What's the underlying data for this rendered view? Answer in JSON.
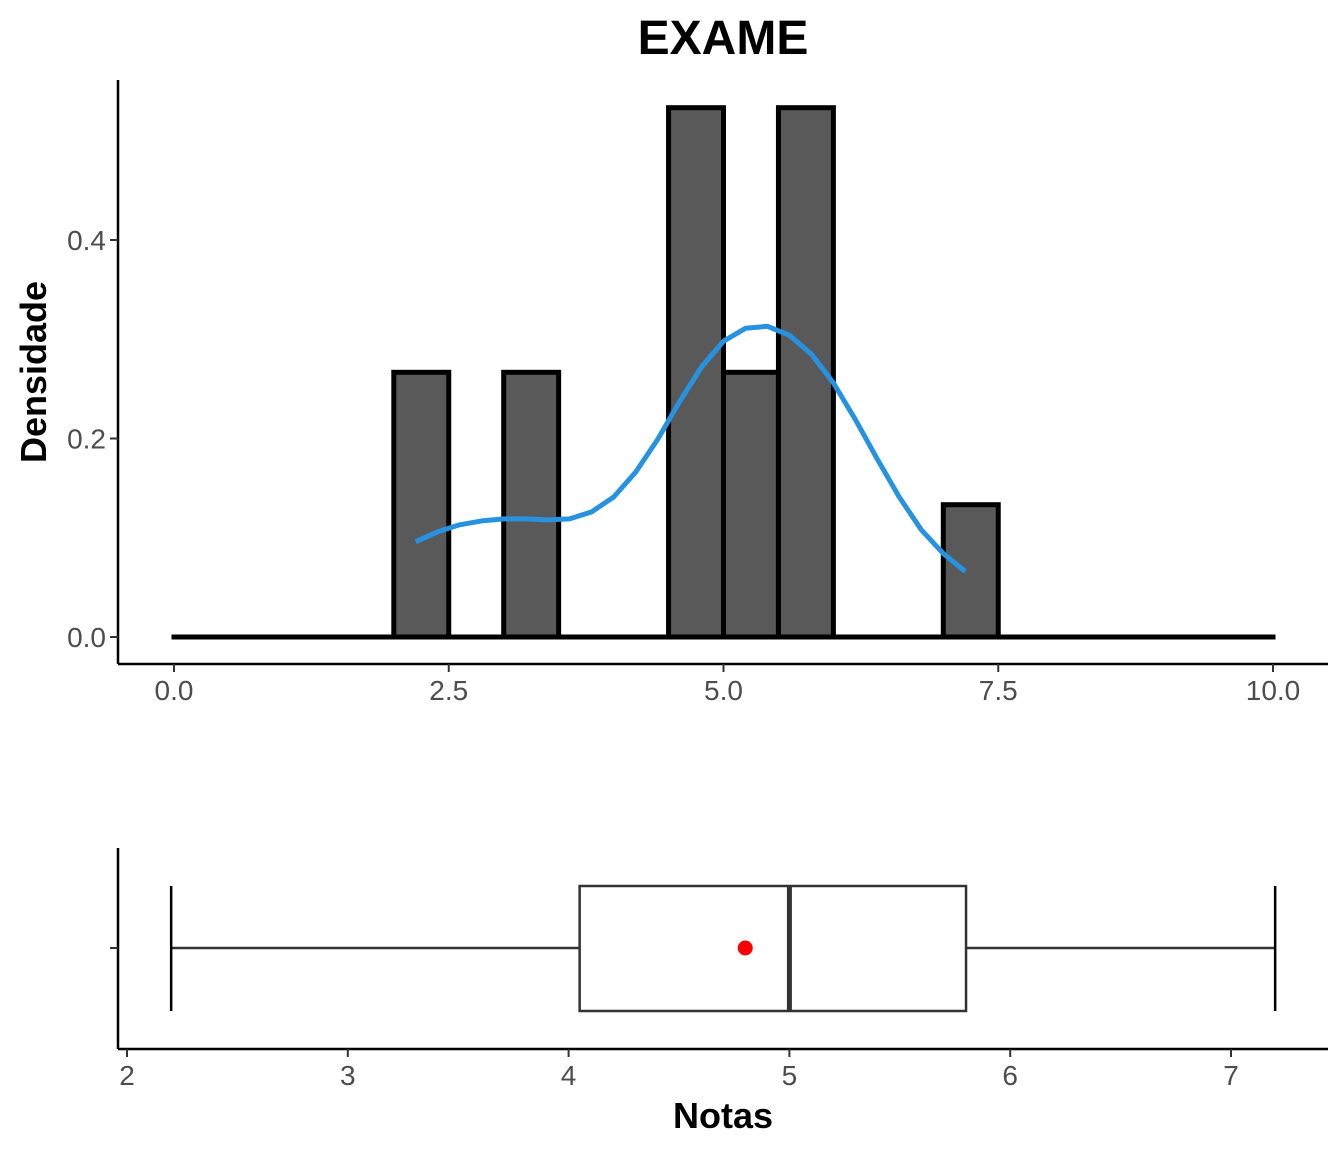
{
  "chart_data": [
    {
      "type": "bar",
      "subtype": "histogram",
      "title": "EXAME",
      "xlabel": "",
      "ylabel": "Densidade",
      "xlim": [
        0.0,
        10.0
      ],
      "ylim": [
        0.0,
        0.55
      ],
      "x_ticks": [
        "0.0",
        "2.5",
        "5.0",
        "7.5",
        "10.0"
      ],
      "y_ticks": [
        "0.0",
        "0.2",
        "0.4"
      ],
      "bin_width": 0.5,
      "bins": [
        {
          "x0": 0.0,
          "x1": 0.5,
          "density": 0.0
        },
        {
          "x0": 0.5,
          "x1": 1.0,
          "density": 0.0
        },
        {
          "x0": 1.0,
          "x1": 1.5,
          "density": 0.0
        },
        {
          "x0": 1.5,
          "x1": 2.0,
          "density": 0.0
        },
        {
          "x0": 2.0,
          "x1": 2.5,
          "density": 0.2667
        },
        {
          "x0": 2.5,
          "x1": 3.0,
          "density": 0.0
        },
        {
          "x0": 3.0,
          "x1": 3.5,
          "density": 0.2667
        },
        {
          "x0": 3.5,
          "x1": 4.0,
          "density": 0.0
        },
        {
          "x0": 4.0,
          "x1": 4.5,
          "density": 0.0
        },
        {
          "x0": 4.5,
          "x1": 5.0,
          "density": 0.5333
        },
        {
          "x0": 5.0,
          "x1": 5.5,
          "density": 0.2667
        },
        {
          "x0": 5.5,
          "x1": 6.0,
          "density": 0.5333
        },
        {
          "x0": 6.0,
          "x1": 6.5,
          "density": 0.0
        },
        {
          "x0": 6.5,
          "x1": 7.0,
          "density": 0.0
        },
        {
          "x0": 7.0,
          "x1": 7.5,
          "density": 0.1333
        },
        {
          "x0": 7.5,
          "x1": 8.0,
          "density": 0.0
        },
        {
          "x0": 8.0,
          "x1": 8.5,
          "density": 0.0
        },
        {
          "x0": 8.5,
          "x1": 9.0,
          "density": 0.0
        },
        {
          "x0": 9.0,
          "x1": 9.5,
          "density": 0.0
        },
        {
          "x0": 9.5,
          "x1": 10.0,
          "density": 0.0
        }
      ],
      "bar_fill": "#595959",
      "bar_stroke": "#000000",
      "density_curve": {
        "color": "#2793e0",
        "points": [
          [
            2.2,
            0.096
          ],
          [
            2.4,
            0.106
          ],
          [
            2.6,
            0.113
          ],
          [
            2.8,
            0.117
          ],
          [
            3.0,
            0.119
          ],
          [
            3.2,
            0.119
          ],
          [
            3.4,
            0.118
          ],
          [
            3.6,
            0.119
          ],
          [
            3.8,
            0.126
          ],
          [
            4.0,
            0.141
          ],
          [
            4.2,
            0.166
          ],
          [
            4.4,
            0.199
          ],
          [
            4.6,
            0.237
          ],
          [
            4.8,
            0.272
          ],
          [
            5.0,
            0.298
          ],
          [
            5.2,
            0.311
          ],
          [
            5.4,
            0.313
          ],
          [
            5.6,
            0.304
          ],
          [
            5.8,
            0.285
          ],
          [
            6.0,
            0.256
          ],
          [
            6.2,
            0.219
          ],
          [
            6.4,
            0.179
          ],
          [
            6.6,
            0.141
          ],
          [
            6.8,
            0.108
          ],
          [
            7.0,
            0.084
          ],
          [
            7.2,
            0.066
          ]
        ]
      }
    },
    {
      "type": "boxplot",
      "xlabel": "Notas",
      "ylabel": "",
      "xlim": [
        1.98,
        7.45
      ],
      "x_ticks": [
        "2",
        "3",
        "4",
        "5",
        "6",
        "7"
      ],
      "min": 2.2,
      "q1": 4.05,
      "median": 5.0,
      "q3": 5.8,
      "max": 7.2,
      "mean": 4.8,
      "mean_color": "#ff0000",
      "box_stroke": "#333333"
    }
  ]
}
